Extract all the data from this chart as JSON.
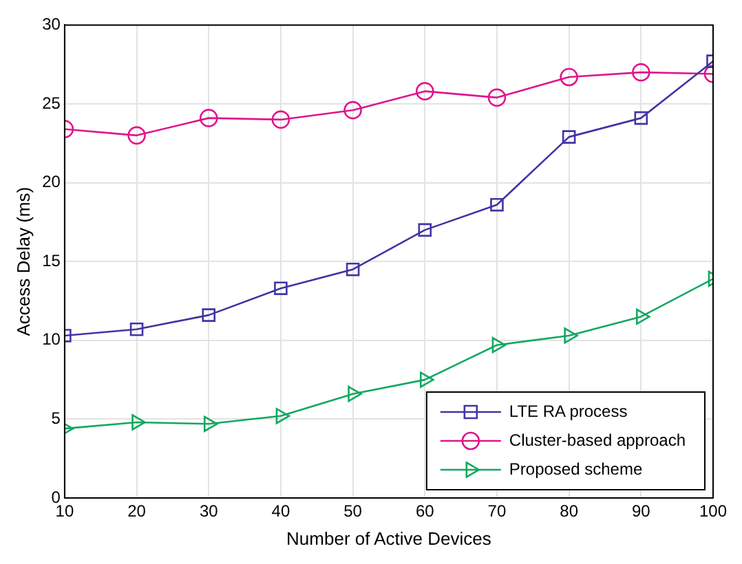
{
  "chart_data": {
    "type": "line",
    "xlabel": "Number of Active Devices",
    "ylabel": "Access Delay (ms)",
    "x": [
      10,
      20,
      30,
      40,
      50,
      60,
      70,
      80,
      90,
      100
    ],
    "series": [
      {
        "name": "LTE RA process",
        "color": "#3f35a5",
        "marker": "square",
        "values": [
          10.3,
          10.7,
          11.6,
          13.3,
          14.5,
          17.0,
          18.6,
          22.9,
          24.1,
          27.7
        ]
      },
      {
        "name": "Cluster-based approach",
        "color": "#e0148c",
        "marker": "circle",
        "values": [
          23.4,
          23.0,
          24.1,
          24.0,
          24.6,
          25.8,
          25.4,
          26.7,
          27.0,
          26.9
        ]
      },
      {
        "name": "Proposed scheme",
        "color": "#10a860",
        "marker": "triangle",
        "values": [
          4.4,
          4.8,
          4.7,
          5.2,
          6.6,
          7.5,
          9.7,
          10.3,
          11.5,
          13.9
        ]
      }
    ],
    "xlim": [
      10,
      100
    ],
    "xticks": [
      10,
      20,
      30,
      40,
      50,
      60,
      70,
      80,
      90,
      100
    ],
    "ylim": [
      0,
      30
    ],
    "yticks": [
      0,
      5,
      10,
      15,
      20,
      25,
      30
    ],
    "grid": true,
    "legend": "bottom right",
    "line_style": "solid"
  }
}
